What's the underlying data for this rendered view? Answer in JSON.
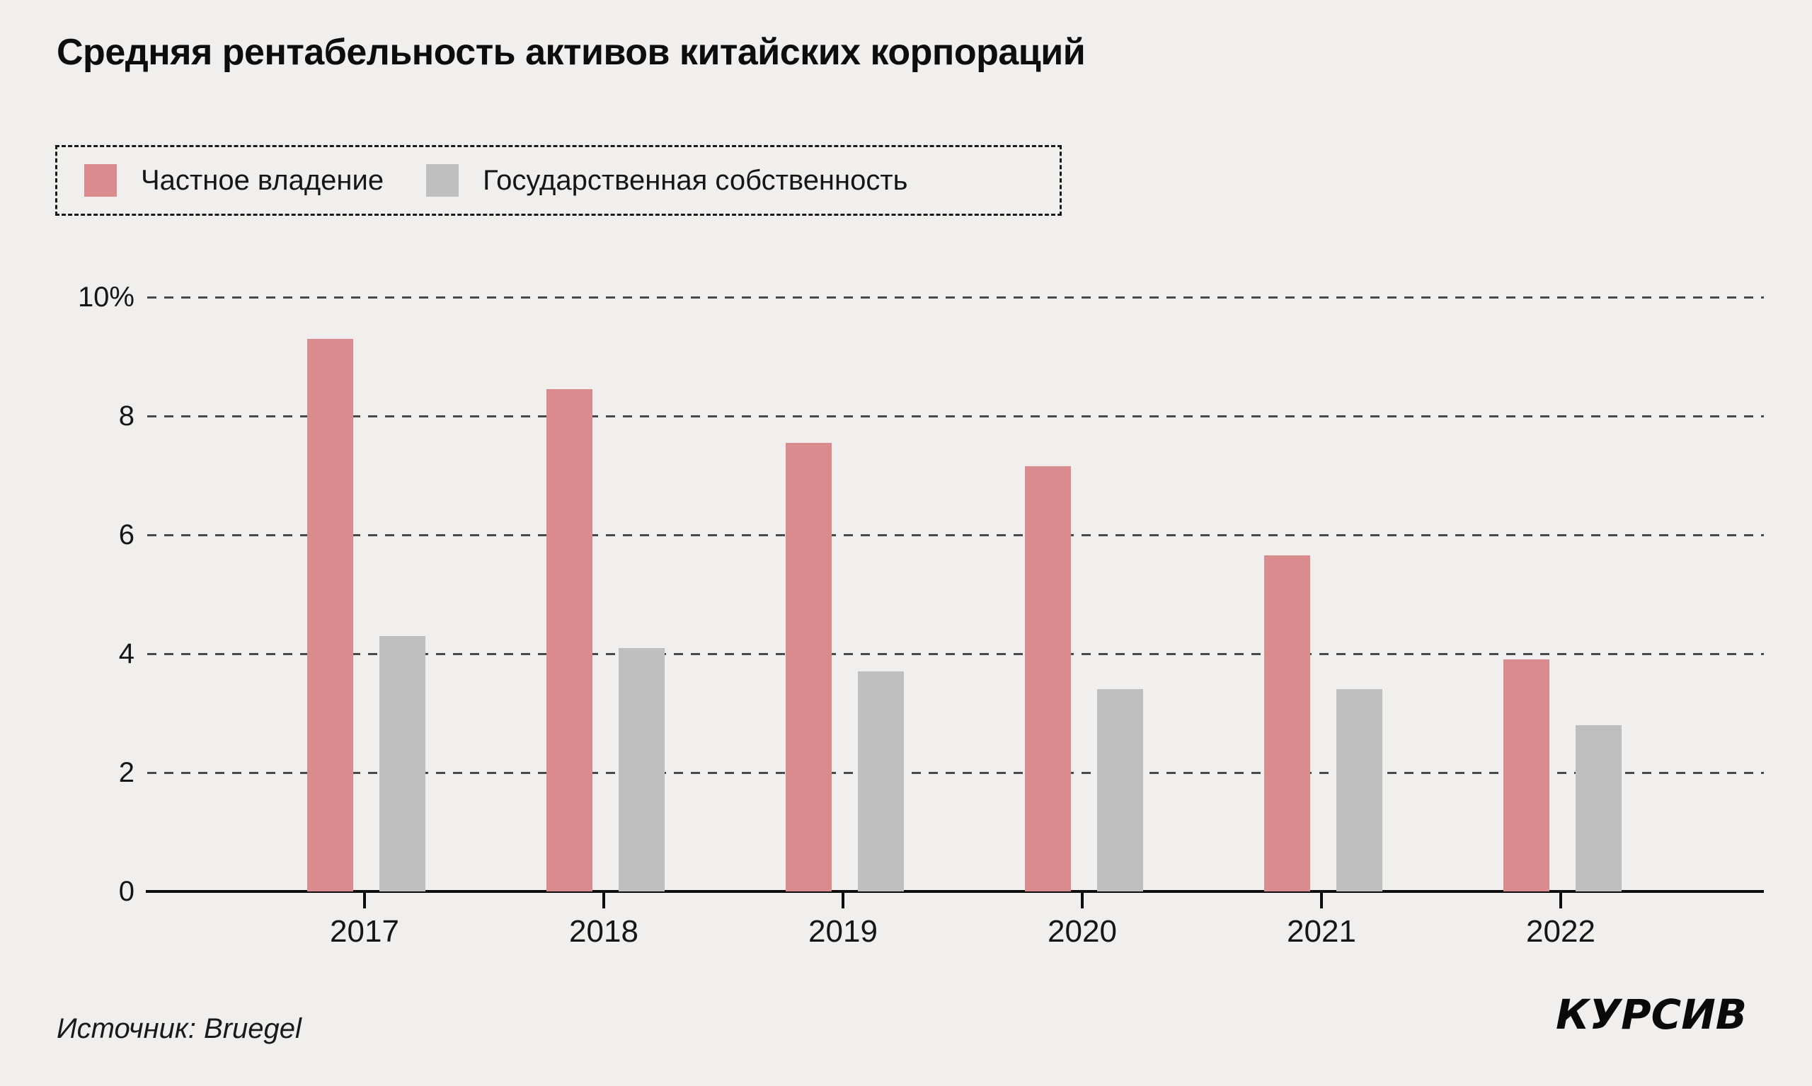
{
  "title": "Средняя рентабельность активов китайских корпораций",
  "legend": {
    "private": {
      "label": "Частное владение",
      "color": "#d98b8e"
    },
    "state": {
      "label": "Государственная собственность",
      "color": "#bfbfbf"
    }
  },
  "source": "Источник: Bruegel",
  "logo": "КУРСИВ",
  "colors": {
    "background": "#f0efee",
    "axis": "#0d0d0d",
    "gridline": "#4a4a4a",
    "bar_private": "#d98b8e",
    "bar_state": "#bfbfbf"
  },
  "chart_data": {
    "type": "bar",
    "title": "Средняя рентабельность активов китайских корпораций",
    "categories": [
      "2017",
      "2018",
      "2019",
      "2020",
      "2021",
      "2022"
    ],
    "series": [
      {
        "name": "Частное владение",
        "key": "private",
        "color": "#d98b8e",
        "values": [
          9.3,
          8.45,
          7.55,
          7.15,
          5.65,
          3.9
        ]
      },
      {
        "name": "Государственная собственность",
        "key": "state",
        "color": "#bfbfbf",
        "values": [
          4.3,
          4.1,
          3.7,
          3.4,
          3.4,
          2.8
        ]
      }
    ],
    "xlabel": "",
    "ylabel": "",
    "ylim": [
      0,
      10
    ],
    "yticks": [
      {
        "value": 10,
        "label": "10%"
      },
      {
        "value": 8,
        "label": "8"
      },
      {
        "value": 6,
        "label": "6"
      },
      {
        "value": 4,
        "label": "4"
      },
      {
        "value": 2,
        "label": "2"
      },
      {
        "value": 0,
        "label": "0"
      }
    ],
    "grid": "horizontal-dashed",
    "legend_position": "top-left"
  }
}
